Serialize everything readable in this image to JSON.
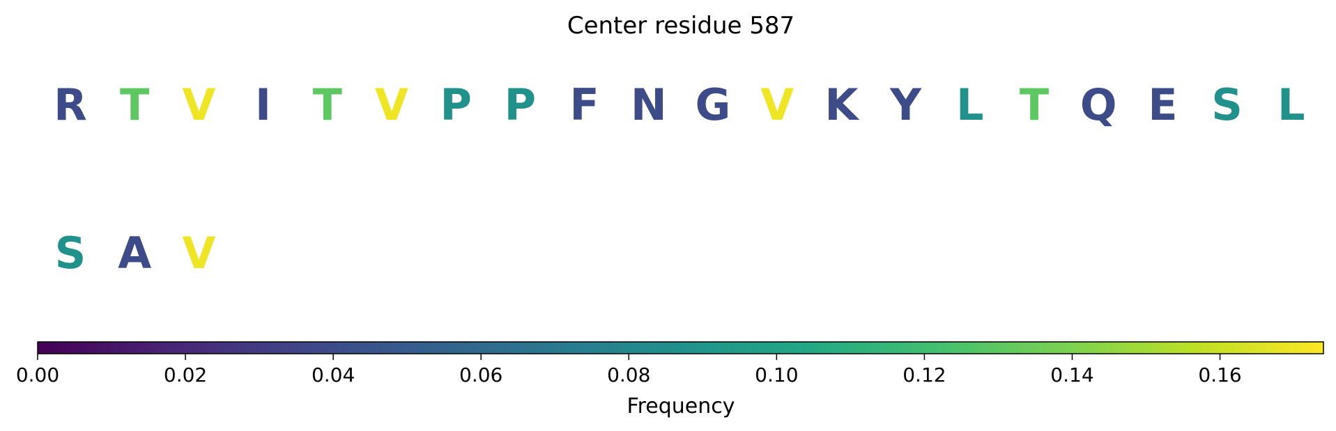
{
  "chart_data": {
    "type": "table",
    "title": "Center residue 587",
    "residues": [
      {
        "letter": "R",
        "frequency": 0.04
      },
      {
        "letter": "T",
        "frequency": 0.13
      },
      {
        "letter": "V",
        "frequency": 0.17
      },
      {
        "letter": "I",
        "frequency": 0.04
      },
      {
        "letter": "T",
        "frequency": 0.13
      },
      {
        "letter": "V",
        "frequency": 0.17
      },
      {
        "letter": "P",
        "frequency": 0.087
      },
      {
        "letter": "P",
        "frequency": 0.087
      },
      {
        "letter": "F",
        "frequency": 0.04
      },
      {
        "letter": "N",
        "frequency": 0.04
      },
      {
        "letter": "G",
        "frequency": 0.04
      },
      {
        "letter": "V",
        "frequency": 0.17
      },
      {
        "letter": "K",
        "frequency": 0.04
      },
      {
        "letter": "Y",
        "frequency": 0.04
      },
      {
        "letter": "L",
        "frequency": 0.087
      },
      {
        "letter": "T",
        "frequency": 0.13
      },
      {
        "letter": "Q",
        "frequency": 0.04
      },
      {
        "letter": "E",
        "frequency": 0.04
      },
      {
        "letter": "S",
        "frequency": 0.087
      },
      {
        "letter": "L",
        "frequency": 0.087
      },
      {
        "letter": "S",
        "frequency": 0.087
      },
      {
        "letter": "A",
        "frequency": 0.04
      },
      {
        "letter": "V",
        "frequency": 0.17
      }
    ],
    "per_row": 20,
    "colorbar": {
      "label": "Frequency",
      "colormap": "viridis",
      "range": [
        0,
        0.174
      ],
      "ticks": [
        "0.00",
        "0.02",
        "0.04",
        "0.06",
        "0.08",
        "0.10",
        "0.12",
        "0.14",
        "0.16"
      ]
    }
  }
}
